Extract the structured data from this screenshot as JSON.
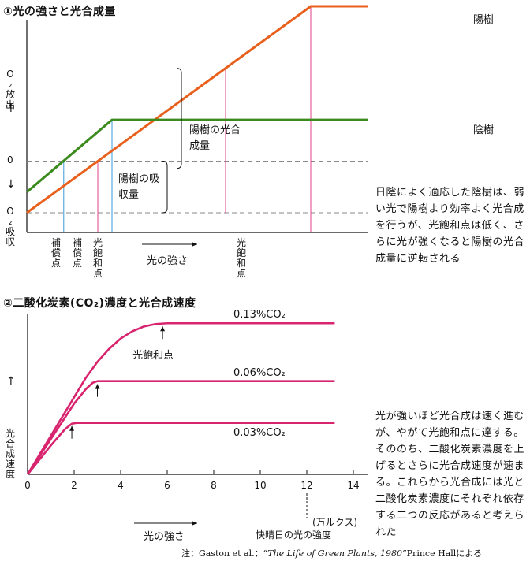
{
  "chart_data": [
    {
      "type": "line",
      "title": "①光の強さと光合成量",
      "xlabel": "光の強さ",
      "ylabel_top": "O₂放出",
      "ylabel_bottom": "O₂吸収",
      "zero_label": "0",
      "series": [
        {
          "name": "陽樹",
          "color": "#e8601c",
          "points": [
            [
              0,
              -1.0
            ],
            [
              10,
              3.0
            ],
            [
              12,
              3.0
            ]
          ]
        },
        {
          "name": "陰樹",
          "color": "#3a8a1e",
          "points": [
            [
              0,
              -0.6
            ],
            [
              3,
              0.8
            ],
            [
              12,
              0.8
            ]
          ]
        }
      ],
      "xlim": [
        0,
        12
      ],
      "ylim": [
        -1.2,
        3.0
      ],
      "marker_lines": [
        {
          "x": 1.3,
          "label": "補償点",
          "color": "#3a9ad9"
        },
        {
          "x": 2.5,
          "label": "補償点",
          "color": "#e0408a"
        },
        {
          "x": 3.0,
          "label": "光飽和点",
          "color": "#3a9ad9"
        },
        {
          "x": 10.0,
          "label": "光飽和点",
          "color": "#e0408a"
        }
      ],
      "brackets": [
        {
          "label": "陽樹の光合成量"
        },
        {
          "label": "陽樹の吸収量"
        }
      ]
    },
    {
      "type": "line",
      "title": "②二酸化炭素(CO₂)濃度と光合成速度",
      "xlabel": "光の強さ",
      "ylabel": "光合成速度",
      "x_unit": "(万ルクス)",
      "x_note": "快晴日の光の強度",
      "xticks": [
        0,
        2,
        4,
        6,
        8,
        10,
        12,
        14
      ],
      "xlim": [
        0,
        14.4
      ],
      "ylim": [
        0,
        100
      ],
      "series": [
        {
          "name": "0.13%CO₂",
          "color": "#d8246e",
          "points": [
            [
              0,
              0
            ],
            [
              0.5,
              12
            ],
            [
              1,
              24
            ],
            [
              1.5,
              36
            ],
            [
              2,
              48
            ],
            [
              2.5,
              60
            ],
            [
              3,
              70
            ],
            [
              3.5,
              78
            ],
            [
              4,
              84.5
            ],
            [
              4.5,
              89
            ],
            [
              5,
              92
            ],
            [
              5.5,
              93.5
            ],
            [
              6,
              94
            ],
            [
              13.2,
              94
            ]
          ]
        },
        {
          "name": "0.06%CO₂",
          "color": "#d8246e",
          "points": [
            [
              0,
              0
            ],
            [
              1,
              22
            ],
            [
              2,
              44
            ],
            [
              2.5,
              53
            ],
            [
              2.8,
              57
            ],
            [
              3,
              58
            ],
            [
              13.2,
              58
            ]
          ]
        },
        {
          "name": "0.03%CO₂",
          "color": "#d8246e",
          "points": [
            [
              0,
              0
            ],
            [
              1,
              18
            ],
            [
              1.6,
              28
            ],
            [
              1.9,
              31.5
            ],
            [
              2.1,
              32
            ],
            [
              13.2,
              32
            ]
          ]
        }
      ],
      "annotations": [
        {
          "text": "光飽和点"
        }
      ]
    }
  ],
  "side_notes": {
    "note1": "日陰によく適応した陰樹は、弱い光で陽樹より効率よく光合成を行うが、光飽和点は低く、さらに光が強くなると陽樹の光合成量に逆転される",
    "note2": "光が強いほど光合成は速く進むが、やがて光飽和点に達する。そののち、二酸化炭素濃度を上げるとさらに光合成速度が速まる。これらから光合成には光と二酸化炭素濃度にそれぞれ依存する二つの反応があると考えられた"
  },
  "footnote": {
    "prefix": "注：Gaston et al.：",
    "title": "“The Life of Green Plants, 1980”",
    "suffix": "Prince Hallによる"
  }
}
